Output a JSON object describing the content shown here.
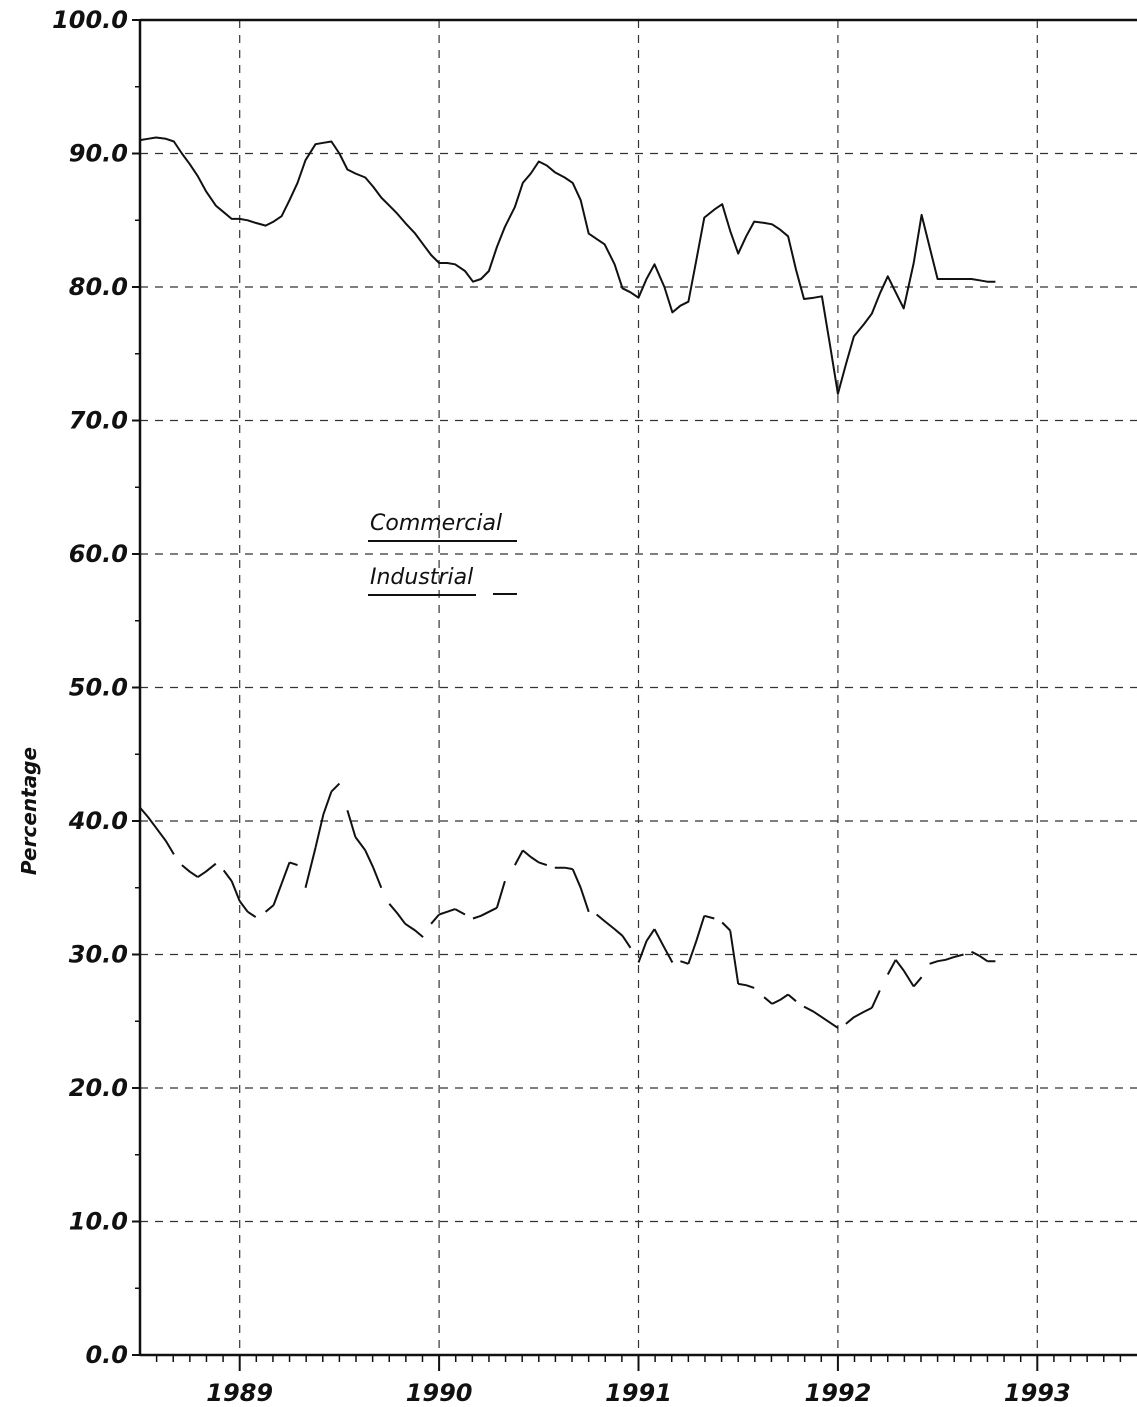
{
  "chart_data": {
    "type": "line",
    "title": "",
    "xlabel": "",
    "ylabel": "Percentage",
    "ylim": [
      0,
      100
    ],
    "xlim": [
      1988.5,
      1993.5
    ],
    "y_ticks": [
      "0.0",
      "10.0",
      "20.0",
      "30.0",
      "40.0",
      "50.0",
      "60.0",
      "70.0",
      "80.0",
      "90.0",
      "100.0"
    ],
    "x_tick_labels": [
      {
        "x": 1989,
        "label": "1989"
      },
      {
        "x": 1990,
        "label": "1990"
      },
      {
        "x": 1991,
        "label": "1991"
      },
      {
        "x": 1992,
        "label": "1992"
      },
      {
        "x": 1993,
        "label": "1993"
      }
    ],
    "grid": true,
    "legend": {
      "placement": "inside upper-left",
      "entries": [
        {
          "label": "Commercial",
          "style": "solid"
        },
        {
          "label": "Industrial",
          "style": "dashed"
        }
      ]
    },
    "series": [
      {
        "name": "Commercial",
        "style": "solid",
        "x": [
          1988.5,
          1988.54,
          1988.58,
          1988.63,
          1988.67,
          1988.71,
          1988.75,
          1988.79,
          1988.83,
          1988.88,
          1988.92,
          1988.96,
          1989.0,
          1989.04,
          1989.08,
          1989.13,
          1989.17,
          1989.21,
          1989.25,
          1989.29,
          1989.33,
          1989.38,
          1989.42,
          1989.46,
          1989.5,
          1989.54,
          1989.58,
          1989.63,
          1989.67,
          1989.71,
          1989.75,
          1989.79,
          1989.83,
          1989.88,
          1989.92,
          1989.96,
          1990.0,
          1990.04,
          1990.08,
          1990.13,
          1990.17,
          1990.21,
          1990.25,
          1990.29,
          1990.33,
          1990.38,
          1990.42,
          1990.46,
          1990.5,
          1990.54,
          1990.58,
          1990.63,
          1990.67,
          1990.71,
          1990.75,
          1990.79,
          1990.83,
          1990.88,
          1990.92,
          1990.96,
          1991.0,
          1991.04,
          1991.08,
          1991.13,
          1991.17,
          1991.21,
          1991.25,
          1991.29,
          1991.33,
          1991.38,
          1991.42,
          1991.46,
          1991.5,
          1991.54,
          1991.58,
          1991.63,
          1991.67,
          1991.71,
          1991.75,
          1991.79,
          1991.83,
          1991.88,
          1991.92,
          1991.96,
          1992.0,
          1992.04,
          1992.08,
          1992.13,
          1992.17,
          1992.21,
          1992.25,
          1992.29,
          1992.33,
          1992.38,
          1992.42,
          1992.46,
          1992.5,
          1992.54,
          1992.58,
          1992.63,
          1992.67,
          1992.71,
          1992.75,
          1992.79
        ],
        "values": [
          91.0,
          91.1,
          91.2,
          91.1,
          90.9,
          90.0,
          89.2,
          88.3,
          87.2,
          86.1,
          85.6,
          85.1,
          85.1,
          85.0,
          84.8,
          84.6,
          84.9,
          85.3,
          86.5,
          87.8,
          89.5,
          90.7,
          90.8,
          90.9,
          90.0,
          88.8,
          88.5,
          88.2,
          87.5,
          86.7,
          86.1,
          85.5,
          84.8,
          84.0,
          83.2,
          82.4,
          81.8,
          81.8,
          81.7,
          81.2,
          80.4,
          80.6,
          81.2,
          83.0,
          84.5,
          86.0,
          87.8,
          88.5,
          89.4,
          89.1,
          88.6,
          88.2,
          87.8,
          86.5,
          84.0,
          83.6,
          83.2,
          81.7,
          79.9,
          79.6,
          79.2,
          80.6,
          81.7,
          80.0,
          78.1,
          78.6,
          78.9,
          82.0,
          85.2,
          85.8,
          86.2,
          84.2,
          82.5,
          83.8,
          84.9,
          84.8,
          84.7,
          84.3,
          83.8,
          81.3,
          79.1,
          79.2,
          79.3,
          75.7,
          72.0,
          74.2,
          76.3,
          77.2,
          78.0,
          79.5,
          80.8,
          79.6,
          78.4,
          81.8,
          85.4,
          83.0,
          80.6,
          80.6,
          80.6,
          80.6,
          80.6,
          80.5,
          80.4,
          80.4
        ]
      },
      {
        "name": "Industrial",
        "style": "dashed",
        "x": [
          1988.5,
          1988.54,
          1988.58,
          1988.63,
          1988.67,
          1988.71,
          1988.75,
          1988.79,
          1988.83,
          1988.88,
          1988.92,
          1988.96,
          1989.0,
          1989.04,
          1989.08,
          1989.13,
          1989.17,
          1989.21,
          1989.25,
          1989.29,
          1989.33,
          1989.38,
          1989.42,
          1989.46,
          1989.5,
          1989.54,
          1989.58,
          1989.63,
          1989.67,
          1989.71,
          1989.75,
          1989.79,
          1989.83,
          1989.88,
          1989.92,
          1989.96,
          1990.0,
          1990.04,
          1990.08,
          1990.13,
          1990.17,
          1990.21,
          1990.25,
          1990.29,
          1990.33,
          1990.38,
          1990.42,
          1990.46,
          1990.5,
          1990.54,
          1990.58,
          1990.63,
          1990.67,
          1990.71,
          1990.75,
          1990.79,
          1990.83,
          1990.88,
          1990.92,
          1990.96,
          1991.0,
          1991.04,
          1991.08,
          1991.13,
          1991.17,
          1991.21,
          1991.25,
          1991.29,
          1991.33,
          1991.38,
          1991.42,
          1991.46,
          1991.5,
          1991.54,
          1991.58,
          1991.63,
          1991.67,
          1991.71,
          1991.75,
          1991.79,
          1991.83,
          1991.88,
          1991.92,
          1991.96,
          1992.0,
          1992.04,
          1992.08,
          1992.13,
          1992.17,
          1992.21,
          1992.25,
          1992.29,
          1992.33,
          1992.38,
          1992.42,
          1992.46,
          1992.5,
          1992.54,
          1992.58,
          1992.63,
          1992.67,
          1992.71,
          1992.75,
          1992.79
        ],
        "values": [
          41.0,
          40.3,
          39.5,
          38.5,
          37.5,
          36.7,
          36.2,
          35.8,
          36.2,
          36.8,
          36.3,
          35.5,
          34.0,
          33.2,
          32.8,
          33.2,
          33.7,
          35.3,
          36.9,
          36.7,
          35.0,
          38.0,
          40.5,
          42.2,
          42.8,
          40.8,
          38.8,
          37.8,
          36.5,
          35.0,
          33.8,
          33.1,
          32.3,
          31.8,
          31.3,
          32.3,
          33.0,
          33.2,
          33.4,
          33.0,
          32.7,
          32.9,
          33.2,
          33.5,
          35.5,
          36.7,
          37.8,
          37.3,
          36.9,
          36.7,
          36.5,
          36.5,
          36.4,
          35.0,
          33.2,
          33.0,
          32.5,
          31.9,
          31.4,
          30.5,
          29.4,
          31.0,
          31.9,
          30.5,
          29.4,
          29.5,
          29.3,
          31.0,
          32.9,
          32.7,
          32.4,
          31.8,
          27.8,
          27.7,
          27.5,
          26.8,
          26.3,
          26.6,
          27.0,
          26.5,
          26.1,
          25.7,
          25.3,
          24.9,
          24.5,
          24.8,
          25.3,
          25.7,
          26.0,
          27.3,
          28.5,
          29.6,
          28.8,
          27.6,
          28.3,
          29.3,
          29.5,
          29.6,
          29.8,
          30.0,
          30.2,
          29.9,
          29.5,
          29.5
        ]
      }
    ]
  }
}
